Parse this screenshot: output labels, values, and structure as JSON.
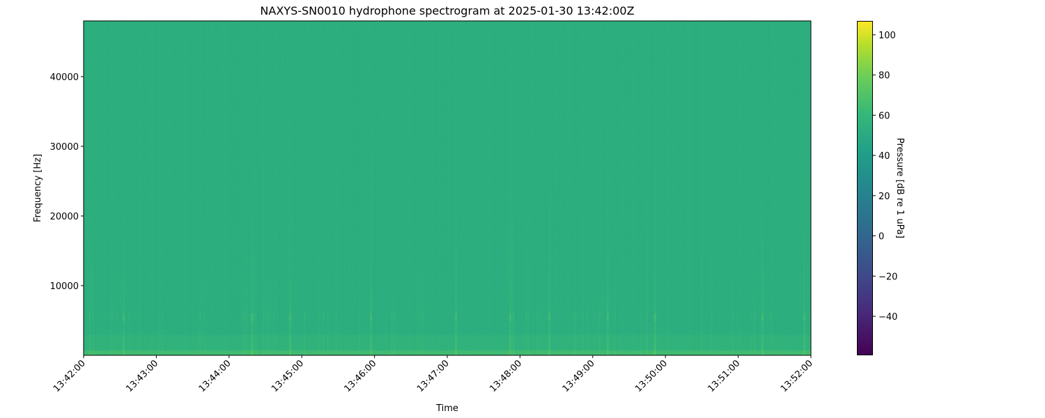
{
  "chart_data": {
    "type": "heatmap",
    "title": "NAXYS-SN0010 hydrophone spectrogram at 2025-01-30 13:42:00Z",
    "xlabel": "Time",
    "ylabel": "Frequency [Hz]",
    "x_ticks": [
      "13:42:00",
      "13:43:00",
      "13:44:00",
      "13:45:00",
      "13:46:00",
      "13:47:00",
      "13:48:00",
      "13:49:00",
      "13:50:00",
      "13:51:00",
      "13:52:00"
    ],
    "xlim": [
      "13:42:00",
      "13:52:00"
    ],
    "y_ticks": [
      10000,
      20000,
      30000,
      40000
    ],
    "ylim": [
      0,
      48000
    ],
    "colorbar": {
      "label": "Pressure [dB re 1 uPa]",
      "colormap": "viridis",
      "ticks": [
        -40,
        -20,
        0,
        20,
        40,
        60,
        80,
        100
      ],
      "range": [
        -59.4,
        106.9
      ]
    },
    "background_level_db": 45,
    "low_frequency_level_db": 55,
    "transient_events": [
      "13:42:33",
      "13:44:19",
      "13:44:50",
      "13:45:57",
      "13:47:07",
      "13:47:52",
      "13:48:24",
      "13:49:12",
      "13:49:51",
      "13:51:20",
      "13:51:54"
    ],
    "tonal_band_hz": 5500,
    "grid": false
  }
}
